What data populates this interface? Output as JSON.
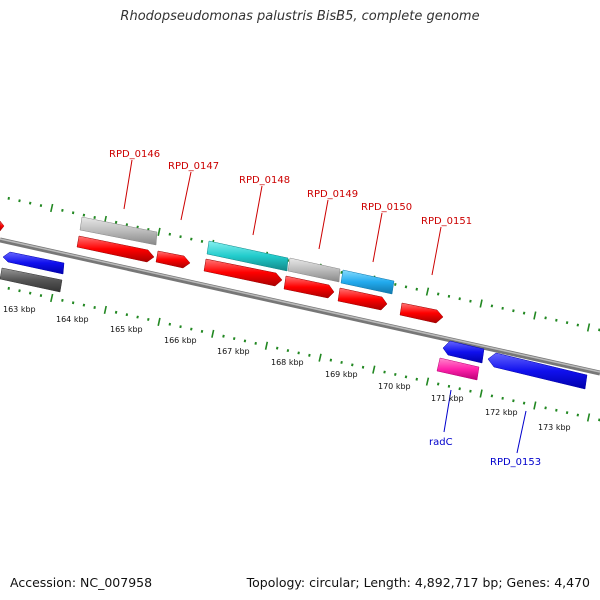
{
  "title": "Rhodopseudomonas palustris BisB5, complete genome",
  "footer": {
    "accession": "Accession: NC_007958",
    "summary": "Topology: circular; Length: 4,892,717 bp; Genes: 4,470"
  },
  "scale_labels": [
    "163 kbp",
    "164 kbp",
    "165 kbp",
    "166 kbp",
    "167 kbp",
    "168 kbp",
    "169 kbp",
    "170 kbp",
    "171 kbp",
    "172 kbp",
    "173 kbp"
  ],
  "gene_labels_above": [
    "RPD_0146",
    "RPD_0147",
    "RPD_0148",
    "RPD_0149",
    "RPD_0150",
    "RPD_0151"
  ],
  "gene_labels_below": [
    "radC",
    "RPD_0153"
  ],
  "colors": {
    "cds": "#ff0000",
    "gene_gray": "#bbbbbb",
    "gene_cyan": "#22cccc",
    "gene_sky": "#22aaee",
    "gene_blue": "#1010ee",
    "gene_magenta": "#ff22aa",
    "gene_dark": "#555555",
    "backbone": "#888888",
    "ticks": "#228822",
    "label_red": "#cc0000",
    "label_blue": "#0000cc"
  }
}
